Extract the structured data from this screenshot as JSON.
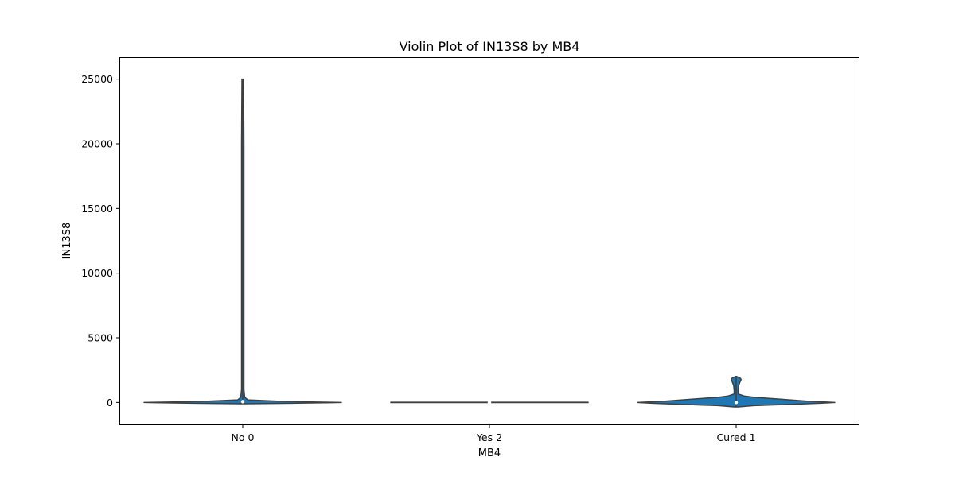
{
  "chart_data": {
    "type": "violin",
    "title": "Violin Plot of IN13S8 by MB4",
    "xlabel": "MB4",
    "ylabel": "IN13S8",
    "categories": [
      "No 0",
      "Yes 2",
      "Cured 1"
    ],
    "ylim": [
      -1700,
      26700
    ],
    "yticks": [
      0,
      5000,
      10000,
      15000,
      20000,
      25000
    ],
    "yticklabels": [
      "0",
      "5000",
      "10000",
      "15000",
      "20000",
      "25000"
    ],
    "grid": false,
    "legend": "none",
    "fill_color": "#1f77b4",
    "edge_color": "#3f3f3f",
    "violins": [
      {
        "category": "No 0",
        "min": -100,
        "max": 25000,
        "median": 60,
        "profile": [
          [
            -100,
            0.02
          ],
          [
            -60,
            0.5
          ],
          [
            -20,
            0.9
          ],
          [
            0,
            1.0
          ],
          [
            40,
            0.7
          ],
          [
            100,
            0.35
          ],
          [
            200,
            0.05
          ],
          [
            400,
            0.02
          ],
          [
            1000,
            0.012
          ],
          [
            3000,
            0.012
          ],
          [
            10000,
            0.012
          ],
          [
            20000,
            0.012
          ],
          [
            25000,
            0.008
          ]
        ]
      },
      {
        "category": "Yes 2",
        "min": -10,
        "max": 10,
        "median": 0,
        "profile": [
          [
            -10,
            1.0
          ],
          [
            0,
            1.0
          ],
          [
            10,
            1.0
          ]
        ]
      },
      {
        "category": "Cured 1",
        "min": -350,
        "max": 2000,
        "median": 0,
        "profile": [
          [
            -350,
            0.02
          ],
          [
            -250,
            0.18
          ],
          [
            -150,
            0.55
          ],
          [
            -60,
            0.85
          ],
          [
            0,
            1.0
          ],
          [
            100,
            0.72
          ],
          [
            250,
            0.45
          ],
          [
            400,
            0.18
          ],
          [
            500,
            0.08
          ],
          [
            650,
            0.02
          ],
          [
            900,
            0.02
          ],
          [
            1300,
            0.025
          ],
          [
            1600,
            0.04
          ],
          [
            1750,
            0.05
          ],
          [
            1850,
            0.045
          ],
          [
            1950,
            0.02
          ],
          [
            2000,
            0.004
          ]
        ]
      }
    ]
  }
}
